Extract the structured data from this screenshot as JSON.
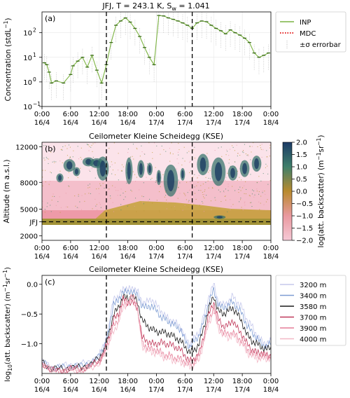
{
  "chart_data": [
    {
      "panel": "(a)",
      "type": "line",
      "title": "JFJ, T = 243.1 K, S",
      "title_sub": "w",
      "title_rest": " = 1.041",
      "ylabel": "Concentration (stdL",
      "ylabel_sup": "−1",
      "ylabel_end": ")",
      "yscale": "log",
      "ylim": [
        0.1,
        700
      ],
      "yticks": [
        0.1,
        1,
        10,
        100
      ],
      "ytick_labels": [
        "10",
        "10",
        "10",
        "10"
      ],
      "ytick_exps": [
        "−1",
        "0",
        "1",
        "2"
      ],
      "xlim": [
        0,
        48
      ],
      "xticks": [
        0,
        6,
        12,
        18,
        24,
        30,
        36,
        42,
        48
      ],
      "xtick_labels": [
        "0:00\n16/4",
        "6:00\n16/4",
        "12:00\n16/4",
        "18:00\n16/4",
        "0:00\n17/4",
        "6:00\n17/4",
        "12:00\n17/4",
        "18:00\n17/4",
        "0:00\n18/4"
      ],
      "vlines": [
        13.5,
        31.5
      ],
      "grid": true,
      "legend": [
        "INP",
        "MDC",
        "±σ  errorbar"
      ],
      "legend_position": "outside-right",
      "series": [
        {
          "name": "INP",
          "color": "#7cb342",
          "x": [
            0.5,
            1.0,
            1.5,
            2.0,
            3.0,
            4.5,
            6.0,
            6.5,
            7.5,
            8.5,
            9.5,
            10.5,
            11.5,
            12.5,
            13.5,
            14.5,
            15.5,
            16.5,
            17.5,
            18.5,
            19.5,
            20.5,
            21.5,
            22.5,
            23.5,
            24.5,
            25.5,
            26.5,
            27.5,
            28.5,
            29.5,
            30.5,
            31.5,
            32.5,
            33.5,
            34.5,
            35.5,
            36.5,
            37.5,
            38.5,
            39.5,
            40.5,
            41.5,
            42.5,
            43.5,
            44.5,
            45.5,
            46.5,
            47.5
          ],
          "y": [
            6,
            5,
            2.5,
            0.9,
            1.1,
            0.9,
            2.0,
            4.5,
            7,
            10,
            4,
            12,
            3,
            0.9,
            5,
            40,
            200,
            300,
            400,
            270,
            150,
            70,
            25,
            10,
            5,
            500,
            480,
            400,
            350,
            300,
            250,
            200,
            150,
            250,
            300,
            280,
            200,
            150,
            120,
            90,
            130,
            100,
            80,
            60,
            40,
            15,
            10,
            12,
            15
          ]
        }
      ]
    },
    {
      "panel": "(b)",
      "type": "heatmap",
      "title": "Ceilometer Kleine Scheidegg (KSE)",
      "ylabel": "Altitude (m a.s.l.)",
      "ylim": [
        1500,
        12500
      ],
      "yticks": [
        2000,
        5000,
        8000,
        12000
      ],
      "ytick_labels": [
        "2000",
        "5000",
        "8000",
        "12000"
      ],
      "hline": {
        "value": 3580,
        "label": "JFJ"
      },
      "xlim": [
        0,
        48
      ],
      "vlines": [
        13.5,
        31.5
      ],
      "colorbar": {
        "label": "log(att. backscatter) (m",
        "label_sup1": "−1",
        "label_mid": "sr",
        "label_sup2": "−1",
        "label_end": ")",
        "vmin": -2.0,
        "vmax": 2.0,
        "ticks": [
          "2.0",
          "1.5",
          "1.0",
          "0.5",
          "0.0",
          "−0.5",
          "−1.0",
          "−1.5",
          "−2.0"
        ]
      }
    },
    {
      "panel": "(c)",
      "type": "line",
      "title": "Ceilometer Kleine Scheidegg (KSE)",
      "ylabel": "log",
      "ylabel_sub": "10",
      "ylabel_rest": "(att. backscatter) (m",
      "ylabel_sup1": "−1",
      "ylabel_mid": "sr",
      "ylabel_sup2": "−1",
      "ylabel_end": ")",
      "ylim": [
        -1.5,
        0.15
      ],
      "yticks": [
        0.0,
        -0.5,
        -1.0
      ],
      "ytick_labels": [
        "0.0",
        "−0.5",
        "−1.0"
      ],
      "xlim": [
        0,
        48
      ],
      "vlines": [
        13.5,
        31.5
      ],
      "legend_position": "outside-right",
      "x": [
        0,
        2,
        4,
        6,
        8,
        10,
        12,
        13,
        14,
        15,
        16,
        17,
        18,
        19,
        20,
        21,
        22,
        23,
        24,
        25,
        26,
        27,
        28,
        29,
        30,
        31,
        32,
        33,
        34,
        35,
        36,
        37,
        38,
        39,
        40,
        41,
        42,
        43,
        44,
        45,
        46,
        47,
        48
      ],
      "series": [
        {
          "name": "3200 m",
          "color": "#c5c8ec",
          "y": [
            -1.3,
            -1.4,
            -1.38,
            -1.35,
            -1.35,
            -1.3,
            -1.2,
            -1.0,
            -0.75,
            -0.2,
            -0.25,
            -0.05,
            -0.1,
            -0.05,
            -0.12,
            -0.3,
            -0.3,
            -0.25,
            -0.35,
            -0.45,
            -0.55,
            -0.6,
            -0.65,
            -0.7,
            -0.9,
            -1.0,
            -0.9,
            -0.8,
            -0.5,
            -0.2,
            0.0,
            -0.3,
            -0.35,
            -0.3,
            -0.2,
            -0.3,
            -0.4,
            -0.6,
            -0.7,
            -0.85,
            -0.95,
            -1.0,
            -0.95
          ]
        },
        {
          "name": "3400 m",
          "color": "#7e9dd3",
          "y": [
            -1.3,
            -1.4,
            -1.4,
            -1.37,
            -1.38,
            -1.32,
            -1.22,
            -1.05,
            -0.8,
            -0.3,
            -0.3,
            -0.1,
            -0.15,
            -0.1,
            -0.2,
            -0.35,
            -0.4,
            -0.35,
            -0.45,
            -0.55,
            -0.6,
            -0.65,
            -0.7,
            -0.75,
            -0.95,
            -1.05,
            -0.95,
            -0.85,
            -0.6,
            -0.3,
            -0.1,
            -0.35,
            -0.4,
            -0.35,
            -0.3,
            -0.4,
            -0.5,
            -0.7,
            -0.8,
            -0.9,
            -1.0,
            -1.05,
            -1.0
          ]
        },
        {
          "name": "3580 m",
          "color": "#1a1a1a",
          "y": [
            -1.3,
            -1.42,
            -1.42,
            -1.4,
            -1.4,
            -1.35,
            -1.25,
            -1.1,
            -0.85,
            -0.5,
            -0.4,
            -0.2,
            -0.25,
            -0.2,
            -0.3,
            -0.6,
            -0.7,
            -0.75,
            -0.8,
            -0.8,
            -0.82,
            -0.85,
            -0.9,
            -0.95,
            -1.05,
            -1.15,
            -1.1,
            -1.0,
            -0.7,
            -0.4,
            -0.2,
            -0.45,
            -0.5,
            -0.45,
            -0.4,
            -0.5,
            -0.65,
            -0.85,
            -0.95,
            -1.0,
            -1.05,
            -1.1,
            -1.05
          ]
        },
        {
          "name": "3700 m",
          "color": "#c0395a",
          "y": [
            -1.32,
            -1.45,
            -1.45,
            -1.42,
            -1.42,
            -1.38,
            -1.28,
            -1.15,
            -0.9,
            -0.6,
            -0.5,
            -0.25,
            -0.3,
            -0.3,
            -0.4,
            -0.9,
            -0.95,
            -1.0,
            -1.0,
            -0.98,
            -1.0,
            -1.02,
            -1.05,
            -1.1,
            -1.2,
            -1.3,
            -1.25,
            -1.15,
            -0.85,
            -0.5,
            -0.3,
            -0.6,
            -0.7,
            -0.7,
            -0.6,
            -0.75,
            -0.85,
            -1.0,
            -1.1,
            -1.15,
            -1.15,
            -1.2,
            -1.2
          ]
        },
        {
          "name": "3900 m",
          "color": "#e57d97",
          "y": [
            -1.33,
            -1.45,
            -1.46,
            -1.44,
            -1.44,
            -1.4,
            -1.3,
            -1.18,
            -0.95,
            -0.7,
            -0.6,
            -0.35,
            -0.3,
            -0.2,
            -0.35,
            -1.0,
            -1.05,
            -1.1,
            -1.1,
            -1.15,
            -1.2,
            -1.2,
            -1.25,
            -1.25,
            -1.3,
            -1.35,
            -1.3,
            -1.2,
            -0.9,
            -0.6,
            -0.4,
            -0.7,
            -0.8,
            -0.85,
            -0.8,
            -0.9,
            -0.95,
            -1.1,
            -1.15,
            -1.2,
            -1.2,
            -1.22,
            -1.2
          ]
        },
        {
          "name": "4000 m",
          "color": "#f2b8c6",
          "y": [
            -1.33,
            -1.46,
            -1.47,
            -1.45,
            -1.45,
            -1.42,
            -1.32,
            -1.2,
            -1.0,
            -0.8,
            -0.65,
            -0.4,
            -0.3,
            -0.25,
            -0.4,
            -1.05,
            -1.1,
            -1.15,
            -1.15,
            -1.2,
            -1.25,
            -1.25,
            -1.3,
            -1.3,
            -1.35,
            -1.38,
            -1.35,
            -1.25,
            -0.95,
            -0.65,
            -0.45,
            -0.75,
            -0.85,
            -0.9,
            -0.85,
            -0.95,
            -1.0,
            -1.15,
            -1.2,
            -1.25,
            -1.25,
            -1.25,
            -1.25
          ]
        }
      ]
    }
  ]
}
